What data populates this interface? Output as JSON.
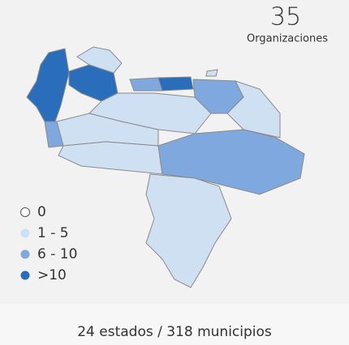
{
  "total": {
    "value": "35",
    "label": "Organizaciones"
  },
  "legend": [
    {
      "label": "0",
      "color": "#ffffff"
    },
    {
      "label": "1 - 5",
      "color": "#cfe0f3"
    },
    {
      "label": "6 - 10",
      "color": "#7fa9de"
    },
    {
      "label": ">10",
      "color": "#2a6ebb"
    }
  ],
  "footer": "24 estados / 318 municipios"
}
